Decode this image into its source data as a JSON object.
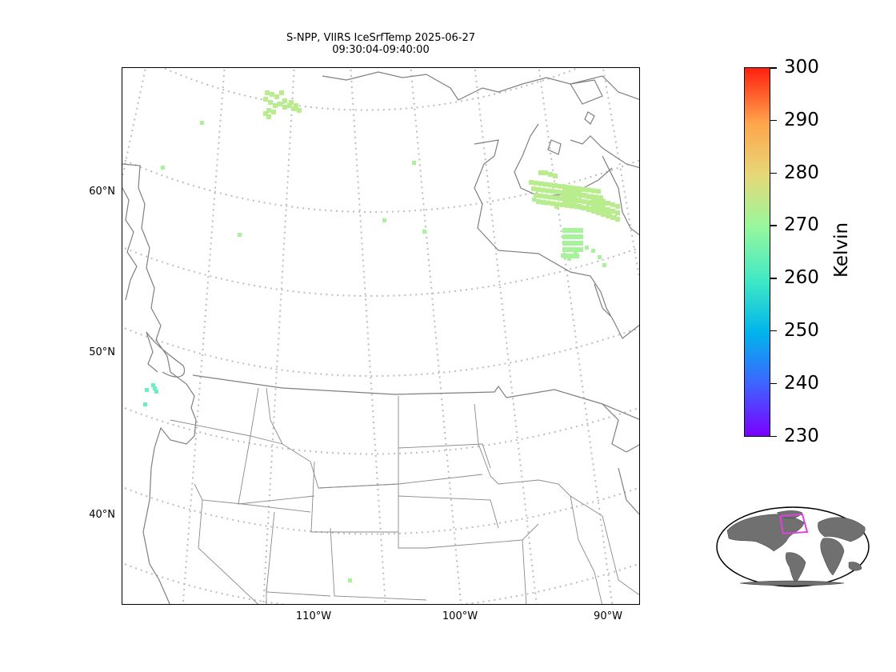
{
  "title": {
    "line1": "S-NPP, VIIRS IceSrfTemp 2025-06-27",
    "line2": "09:30:04-09:40:00"
  },
  "map": {
    "projection": "Lambert conformal (North America)",
    "lat_labels": [
      "60°N",
      "50°N",
      "40°N"
    ],
    "lon_labels": [
      "110°W",
      "100°W",
      "90°W"
    ],
    "gridline_style": "dotted",
    "coastline_color": "#808080"
  },
  "colorbar": {
    "label": "Kelvin",
    "ticks": [
      "300",
      "290",
      "280",
      "270",
      "260",
      "250",
      "240",
      "230"
    ],
    "min": 230,
    "max": 300,
    "colormap": "rainbow"
  },
  "inset": {
    "name": "world locator map",
    "land_color": "#707070",
    "box_color": "#e040e0"
  },
  "pixel_colors": {
    "warm": "#b9ec8c",
    "mid": "#a6f39a",
    "cool": "#6af0bf"
  }
}
